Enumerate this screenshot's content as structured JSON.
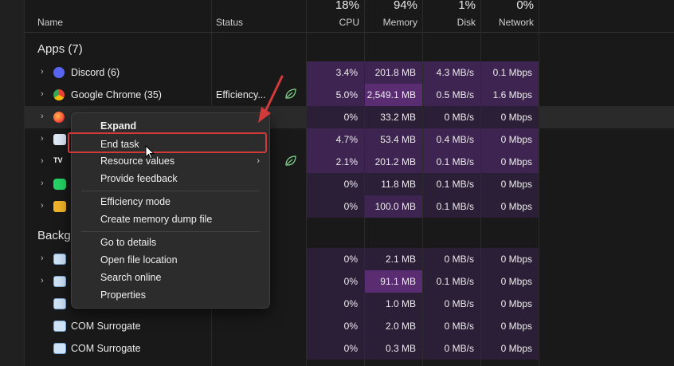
{
  "header": {
    "name_label": "Name",
    "status_label": "Status",
    "cpu": {
      "percent": "18%",
      "label": "CPU"
    },
    "memory": {
      "percent": "94%",
      "label": "Memory"
    },
    "disk": {
      "percent": "1%",
      "label": "Disk"
    },
    "network": {
      "percent": "0%",
      "label": "Network"
    }
  },
  "sections": {
    "apps": "Apps (7)",
    "background": "Backg"
  },
  "rows": [
    {
      "name": "Discord (6)",
      "status": "",
      "cpu": "3.4%",
      "memory": "201.8 MB",
      "disk": "4.3 MB/s",
      "network": "0.1 Mbps",
      "icon": "discord-icon"
    },
    {
      "name": "Google Chrome (35)",
      "status": "Efficiency...",
      "cpu": "5.0%",
      "memory": "2,549.1 MB",
      "disk": "0.5 MB/s",
      "network": "1.6 Mbps",
      "icon": "chrome-icon"
    },
    {
      "name": "",
      "status": "",
      "cpu": "0%",
      "memory": "33.2 MB",
      "disk": "0 MB/s",
      "network": "0 Mbps",
      "icon": "firefox-icon"
    },
    {
      "name": "",
      "status": "",
      "cpu": "4.7%",
      "memory": "53.4 MB",
      "disk": "0.4 MB/s",
      "network": "0 Mbps",
      "icon": "monitor-graph-icon"
    },
    {
      "name": "",
      "status": "",
      "cpu": "2.1%",
      "memory": "201.2 MB",
      "disk": "0.1 MB/s",
      "network": "0 Mbps",
      "icon": "tradingview-icon"
    },
    {
      "name": "",
      "status": "",
      "cpu": "0%",
      "memory": "11.8 MB",
      "disk": "0.1 MB/s",
      "network": "0 Mbps",
      "icon": "whatsapp-icon"
    },
    {
      "name": "",
      "status": "",
      "cpu": "0%",
      "memory": "100.0 MB",
      "disk": "0.1 MB/s",
      "network": "0 Mbps",
      "icon": "folder-icon"
    },
    {
      "name": "",
      "status": "",
      "cpu": "0%",
      "memory": "2.1 MB",
      "disk": "0 MB/s",
      "network": "0 Mbps",
      "icon": "window-app-icon"
    },
    {
      "name": "",
      "status": "",
      "cpu": "0%",
      "memory": "91.1 MB",
      "disk": "0.1 MB/s",
      "network": "0 Mbps",
      "icon": "window-app-icon"
    },
    {
      "name": "",
      "status": "",
      "cpu": "0%",
      "memory": "1.0 MB",
      "disk": "0 MB/s",
      "network": "0 Mbps",
      "icon": "window-app-icon"
    },
    {
      "name": "COM Surrogate",
      "status": "",
      "cpu": "0%",
      "memory": "2.0 MB",
      "disk": "0 MB/s",
      "network": "0 Mbps",
      "icon": "window-app-icon"
    },
    {
      "name": "COM Surrogate",
      "status": "",
      "cpu": "0%",
      "memory": "0.3 MB",
      "disk": "0 MB/s",
      "network": "0 Mbps",
      "icon": "window-app-icon"
    }
  ],
  "context_menu": {
    "expand": "Expand",
    "end_task": "End task",
    "resource_values": "Resource values",
    "provide_feedback": "Provide feedback",
    "efficiency_mode": "Efficiency mode",
    "create_dump": "Create memory dump file",
    "go_to_details": "Go to details",
    "open_file_location": "Open file location",
    "search_online": "Search online",
    "properties": "Properties"
  },
  "colors": {
    "heat_high": "#5a2d73",
    "heat_mid": "#3e2450",
    "heat_low": "#2b1e37",
    "annotation_red": "#d23a3a"
  }
}
